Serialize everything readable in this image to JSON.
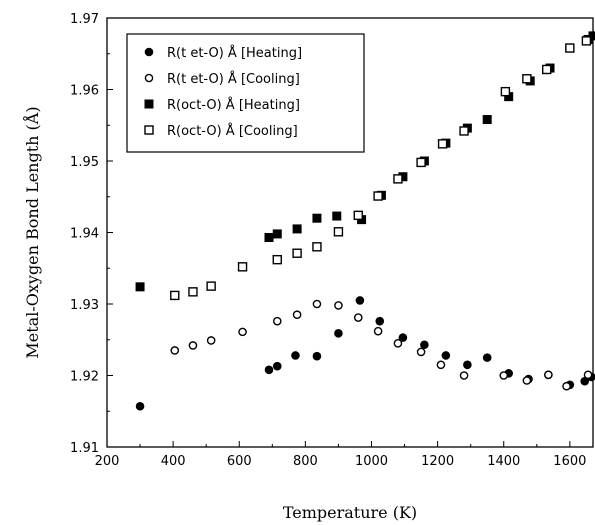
{
  "chart_data": {
    "type": "scatter",
    "title": "",
    "xlabel": "Temperature (K)",
    "ylabel": "Metal-Oxygen Bond Length (Å)",
    "xlim": [
      200,
      1670
    ],
    "ylim": [
      1.91,
      1.97
    ],
    "xticks": [
      "200",
      "400",
      "600",
      "800",
      "1000",
      "1200",
      "1400",
      "1600"
    ],
    "yticks": [
      "1.91",
      "1.92",
      "1.93",
      "1.94",
      "1.95",
      "1.96",
      "1.97"
    ],
    "grid": false,
    "legend_position": "top-left",
    "series": [
      {
        "name": "R(t et-O) Å [Heating]",
        "marker": "filled-circle",
        "x": [
          300,
          690,
          715,
          770,
          835,
          900,
          965,
          1025,
          1095,
          1160,
          1225,
          1290,
          1350,
          1415,
          1475,
          1535,
          1600,
          1645,
          1665
        ],
        "y": [
          1.9157,
          1.9208,
          1.9213,
          1.9228,
          1.9227,
          1.9259,
          1.9305,
          1.9276,
          1.9253,
          1.9243,
          1.9228,
          1.9215,
          1.9225,
          1.9203,
          1.9195,
          1.9201,
          1.9187,
          1.9192,
          1.9198
        ]
      },
      {
        "name": "R(t et-O) Å [Cooling]",
        "marker": "open-circle",
        "x": [
          405,
          460,
          515,
          610,
          715,
          775,
          835,
          900,
          960,
          1020,
          1080,
          1150,
          1210,
          1280,
          1400,
          1470,
          1535,
          1590,
          1655
        ],
        "y": [
          1.9235,
          1.9242,
          1.9249,
          1.9261,
          1.9276,
          1.9285,
          1.93,
          1.9298,
          1.9281,
          1.9262,
          1.9245,
          1.9233,
          1.9215,
          1.92,
          1.92,
          1.9193,
          1.9201,
          1.9185,
          1.9201
        ]
      },
      {
        "name": "R(oct-O) Å [Heating]",
        "marker": "filled-square",
        "x": [
          300,
          690,
          715,
          775,
          835,
          895,
          970,
          1030,
          1095,
          1160,
          1225,
          1290,
          1350,
          1415,
          1480,
          1540,
          1600,
          1655,
          1670
        ],
        "y": [
          1.9324,
          1.9393,
          1.9398,
          1.9405,
          1.942,
          1.9423,
          1.9418,
          1.9452,
          1.9478,
          1.95,
          1.9525,
          1.9546,
          1.9558,
          1.959,
          1.9612,
          1.963,
          1.9658,
          1.967,
          1.9675
        ]
      },
      {
        "name": "R(oct-O) Å [Cooling]",
        "marker": "open-square",
        "x": [
          405,
          460,
          515,
          610,
          715,
          775,
          835,
          900,
          960,
          1020,
          1080,
          1150,
          1215,
          1280,
          1405,
          1470,
          1530,
          1600,
          1650
        ],
        "y": [
          1.9312,
          1.9317,
          1.9325,
          1.9352,
          1.9362,
          1.9371,
          1.938,
          1.9401,
          1.9424,
          1.9451,
          1.9475,
          1.9498,
          1.9524,
          1.9542,
          1.9597,
          1.9615,
          1.9628,
          1.9658,
          1.9668
        ]
      }
    ]
  }
}
